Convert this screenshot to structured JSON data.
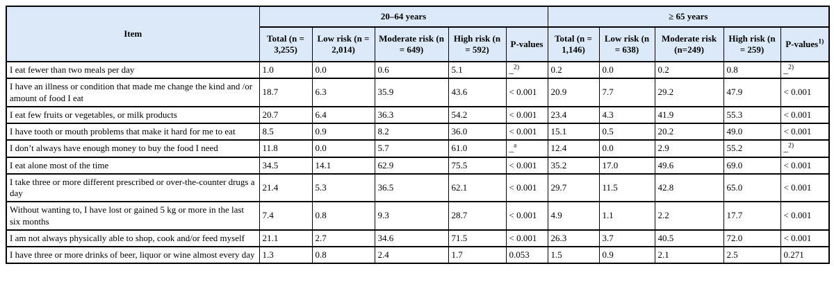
{
  "table": {
    "item_header": "Item",
    "groups": [
      {
        "label": "20–64 years",
        "cols": [
          {
            "text": "Total (n = 3,255)"
          },
          {
            "text": "Low risk (n = 2,014)"
          },
          {
            "text": "Moderate risk (n = 649)"
          },
          {
            "text": "High risk (n = 592)"
          },
          {
            "text": "P-values"
          }
        ]
      },
      {
        "label": "≥  65 years",
        "cols": [
          {
            "text": "Total (n = 1,146)"
          },
          {
            "text": "Low risk (n = 638)"
          },
          {
            "text": "Moderate risk (n=249)"
          },
          {
            "text": "High risk (n = 259)"
          },
          {
            "text": "P-values",
            "sup": "1)"
          }
        ]
      }
    ],
    "rows": [
      {
        "item": "I eat fewer than two meals per day",
        "values": [
          "1.0",
          "0.0",
          "0.6",
          "5.1",
          {
            "base": "_",
            "sup": "2)"
          },
          "0.2",
          "0.0",
          "0.2",
          "0.8",
          {
            "base": "_",
            "sup": "2)"
          }
        ]
      },
      {
        "item": "I have an illness or condition that made me change the kind and /or amount of food I eat",
        "values": [
          "18.7",
          "6.3",
          "35.9",
          "43.6",
          "< 0.001",
          "20.9",
          "7.7",
          "29.2",
          "47.9",
          "< 0.001"
        ]
      },
      {
        "item": "I eat few fruits or vegetables, or milk products",
        "values": [
          "20.7",
          "6.4",
          "36.3",
          "54.2",
          "< 0.001",
          "23.4",
          "4.3",
          "41.9",
          "55.3",
          "< 0.001"
        ]
      },
      {
        "item": "I have tooth or mouth problems that make it hard for me to eat",
        "values": [
          "8.5",
          "0.9",
          "8.2",
          "36.0",
          "< 0.001",
          "15.1",
          "0.5",
          "20.2",
          "49.0",
          "< 0.001"
        ]
      },
      {
        "item": "I don’t always have enough money to buy the food I need",
        "values": [
          "11.8",
          "0.0",
          "5.7",
          "61.0",
          {
            "base": "_",
            "sup": "a"
          },
          "12.4",
          "0.0",
          "2.9",
          "55.2",
          {
            "base": "_",
            "sup": "2)"
          }
        ]
      },
      {
        "item": "I eat alone most of the time",
        "values": [
          "34.5",
          "14.1",
          "62.9",
          "75.5",
          "< 0.001",
          "35.2",
          "17.0",
          "49.6",
          "69.0",
          "< 0.001"
        ]
      },
      {
        "item": "I take three or more different prescribed or over-the-counter drugs a day",
        "values": [
          "21.4",
          "5.3",
          "36.5",
          "62.1",
          "< 0.001",
          "29.7",
          "11.5",
          "42.8",
          "65.0",
          "< 0.001"
        ]
      },
      {
        "item": "Without wanting to, I have lost or gained 5 kg or more in the last six months",
        "values": [
          "7.4",
          "0.8",
          "9.3",
          "28.7",
          "< 0.001",
          "4.9",
          "1.1",
          "2.2",
          "17.7",
          "< 0.001"
        ]
      },
      {
        "item": "I am not always physically able to shop, cook and/or feed myself",
        "values": [
          "21.1",
          "2.7",
          "34.6",
          "71.5",
          "< 0.001",
          "26.3",
          "3.7",
          "40.5",
          "72.0",
          "< 0.001"
        ]
      },
      {
        "item": "I have three or more drinks of beer, liquor or wine almost every day",
        "values": [
          "1.3",
          "0.8",
          "2.4",
          "1.7",
          "0.053",
          "1.5",
          "0.9",
          "2.1",
          "2.5",
          "0.271"
        ]
      }
    ]
  },
  "colors": {
    "header_bg": "#dbe9f8",
    "border": "#000000",
    "text": "#000000"
  }
}
